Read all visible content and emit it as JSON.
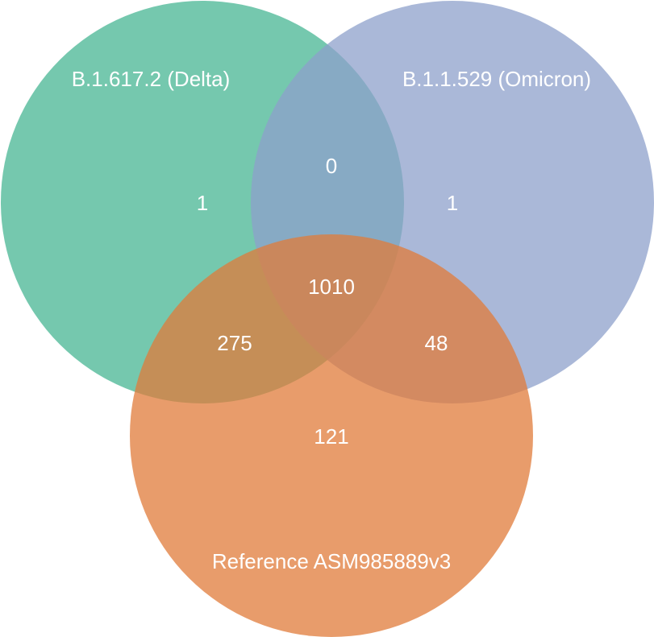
{
  "venn": {
    "colors": {
      "delta": "#66c2a5",
      "omicron": "#8da0cb",
      "reference": "#e07b39"
    },
    "sets": {
      "delta": "B.1.617.2 (Delta)",
      "omicron": "B.1.1.529 (Omicron)",
      "reference": "Reference ASM985889v3"
    },
    "regions": {
      "delta_only": "1",
      "omicron_only": "1",
      "reference_only": "121",
      "delta_omicron": "0",
      "delta_reference": "275",
      "omicron_reference": "48",
      "all_three": "1010"
    }
  }
}
